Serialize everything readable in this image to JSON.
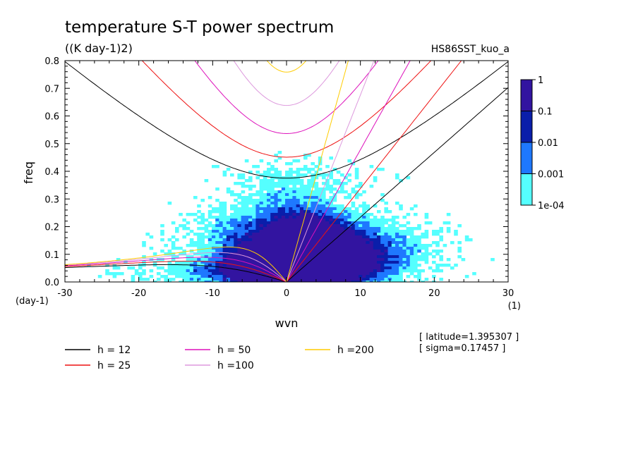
{
  "chart_data": {
    "type": "heatmap",
    "title": "temperature S-T power spectrum",
    "subtitle": "((K day-1)2)",
    "dataset_label": "HS86SST_kuo_a",
    "xlabel": "wvn",
    "xunit": "(1)",
    "ylabel": "freq",
    "yunit": "(day-1)",
    "xlim": [
      -30,
      30
    ],
    "ylim": [
      0,
      0.8
    ],
    "xticks": [
      "-30",
      "-20",
      "-10",
      "0",
      "10",
      "20",
      "30"
    ],
    "yticks": [
      "0.0",
      "0.1",
      "0.2",
      "0.3",
      "0.4",
      "0.5",
      "0.6",
      "0.7",
      "0.8"
    ],
    "colorbar": {
      "labels": [
        "1",
        "0.1",
        "0.01",
        "0.001",
        "1e-04"
      ],
      "levels": [
        0.0001,
        0.001,
        0.01,
        0.1,
        1
      ],
      "colors": [
        "#55ffff",
        "#1e78ff",
        "#0a1eaa",
        "#3214a0"
      ]
    },
    "dispersion_legend": [
      {
        "label": "h = 12",
        "color": "#000000"
      },
      {
        "label": "h = 25",
        "color": "#ee1111"
      },
      {
        "label": "h = 50",
        "color": "#dd11bb"
      },
      {
        "label": "h =100",
        "color": "#dd99dd"
      },
      {
        "label": "h =200",
        "color": "#ffcc00"
      }
    ],
    "info_lines": [
      "[ latitude=1.395307 ]",
      "[ sigma=0.17457 ]"
    ],
    "blobs": [
      {
        "x": 0,
        "y": 0.03,
        "level": 3
      },
      {
        "x": 1.5,
        "y": 0.05,
        "level": 3
      },
      {
        "x": -1,
        "y": 0.06,
        "level": 2
      },
      {
        "x": 2,
        "y": 0.11,
        "level": 2
      },
      {
        "x": 4,
        "y": 0.08,
        "level": 2
      },
      {
        "x": 6,
        "y": 0.05,
        "level": 2
      },
      {
        "x": -3,
        "y": 0.04,
        "level": 2
      },
      {
        "x": 1,
        "y": 0.2,
        "level": 2
      },
      {
        "x": 8,
        "y": 0.13,
        "level": 2
      },
      {
        "x": -5,
        "y": 0.09,
        "level": 1
      },
      {
        "x": 0,
        "y": 0.15,
        "level": 1
      },
      {
        "x": 3,
        "y": 0.25,
        "level": 1
      },
      {
        "x": 10,
        "y": 0.07,
        "level": 1
      },
      {
        "x": 12,
        "y": 0.04,
        "level": 1
      },
      {
        "x": -10,
        "y": 0.03,
        "level": 1
      },
      {
        "x": -2,
        "y": 0.3,
        "level": 1
      },
      {
        "x": 5,
        "y": 0.18,
        "level": 1
      },
      {
        "x": -8,
        "y": 0.2,
        "level": 1
      },
      {
        "x": 15,
        "y": 0.1,
        "level": 1
      }
    ]
  }
}
